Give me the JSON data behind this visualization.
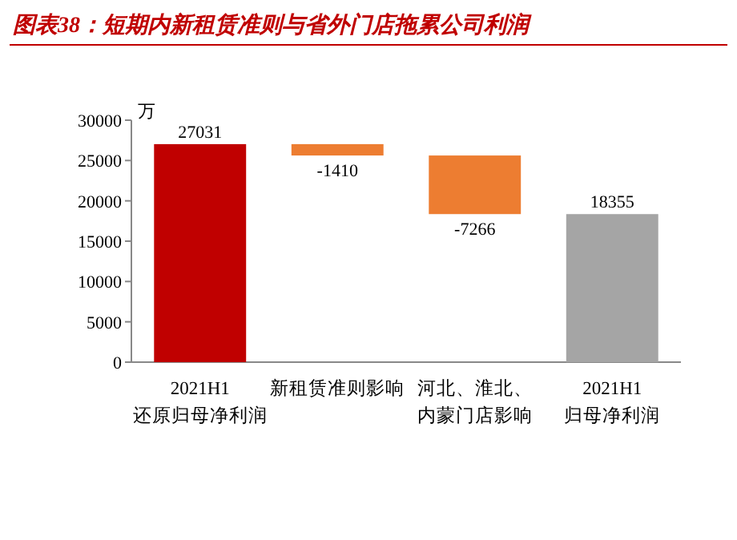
{
  "chart_data": {
    "type": "bar",
    "title": "图表38：短期内新租赁准则与省外门店拖累公司利润",
    "ylabel": "万",
    "categories": [
      "2021H1\n还原归母净利润",
      "新租赁准则影响",
      "河北、淮北、内蒙门店影响",
      "2021H1\n归母净利润"
    ],
    "values": [
      27031,
      -1410,
      -7266,
      18355
    ],
    "base": [
      0,
      27031,
      25621,
      0
    ],
    "colors": [
      "#c00000",
      "#ed7d31",
      "#ed7d31",
      "#a5a5a5"
    ],
    "ylim": [
      0,
      30000
    ],
    "yticks": [
      0,
      5000,
      10000,
      15000,
      20000,
      25000,
      30000
    ],
    "data_labels": true,
    "grid": false,
    "legend": false
  }
}
